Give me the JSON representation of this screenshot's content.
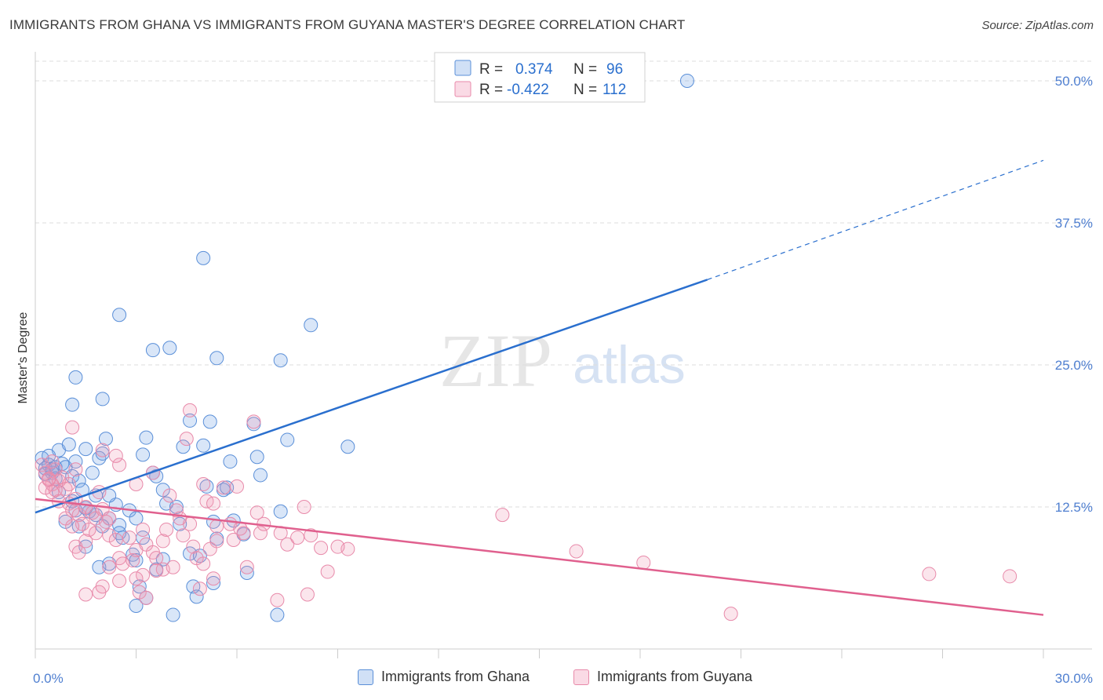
{
  "title": "IMMIGRANTS FROM GHANA VS IMMIGRANTS FROM GUYANA MASTER'S DEGREE CORRELATION CHART",
  "source": "Source: ZipAtlas.com",
  "watermark": {
    "zip": "ZIP",
    "atlas": "atlas"
  },
  "colors": {
    "ghana_fill": "rgba(120,165,230,0.28)",
    "ghana_stroke": "#5a8fd8",
    "ghana_line": "#2a6fce",
    "guyana_fill": "rgba(240,150,180,0.25)",
    "guyana_stroke": "#e88aaa",
    "guyana_line": "#e0608e",
    "tick": "#4f7fd0",
    "grid": "#dddddd"
  },
  "legend": {
    "r1_label": "R = ",
    "r1_value": "0.374",
    "n1_label": "N = ",
    "n1_value": "96",
    "r2_label": "R = ",
    "r2_value": "-0.422",
    "n2_label": "N = ",
    "n2_value": "112"
  },
  "bottom_legend": {
    "ghana": "Immigrants from Ghana",
    "guyana": "Immigrants from Guyana"
  },
  "chart_data": {
    "type": "scatter",
    "title": "IMMIGRANTS FROM GHANA VS IMMIGRANTS FROM GUYANA MASTER'S DEGREE CORRELATION CHART",
    "xlabel": "",
    "ylabel": "Master's Degree",
    "xlim": [
      0,
      30
    ],
    "ylim": [
      0,
      52
    ],
    "x_tick_labels": [
      "0.0%",
      "30.0%"
    ],
    "y_ticks": [
      12.5,
      25.0,
      37.5,
      50.0
    ],
    "y_tick_labels": [
      "12.5%",
      "25.0%",
      "37.5%",
      "50.0%"
    ],
    "grid": true,
    "legend_position": "top-center",
    "series": [
      {
        "name": "Immigrants from Ghana",
        "R": 0.374,
        "N": 96,
        "trend": {
          "x0": 0,
          "y0": 12.0,
          "x1": 20.0,
          "y1": 32.5,
          "dashed_to": [
            30.0,
            43.0
          ]
        },
        "points": [
          [
            0.2,
            16.8
          ],
          [
            0.3,
            15.9
          ],
          [
            0.4,
            16.2
          ],
          [
            0.5,
            15.5
          ],
          [
            0.6,
            16.0
          ],
          [
            0.7,
            17.5
          ],
          [
            0.3,
            15.4
          ],
          [
            0.8,
            16.3
          ],
          [
            0.5,
            15.8
          ],
          [
            0.4,
            17.0
          ],
          [
            0.9,
            16.0
          ],
          [
            1.0,
            18.0
          ],
          [
            1.2,
            16.5
          ],
          [
            1.1,
            15.2
          ],
          [
            1.3,
            14.8
          ],
          [
            0.6,
            15.0
          ],
          [
            0.7,
            13.8
          ],
          [
            1.5,
            17.6
          ],
          [
            1.4,
            14.0
          ],
          [
            1.6,
            12.1
          ],
          [
            1.7,
            15.5
          ],
          [
            1.8,
            13.5
          ],
          [
            1.9,
            16.8
          ],
          [
            2.0,
            17.2
          ],
          [
            2.1,
            18.5
          ],
          [
            1.1,
            13.0
          ],
          [
            1.2,
            12.2
          ],
          [
            0.9,
            11.2
          ],
          [
            1.3,
            10.8
          ],
          [
            1.5,
            12.4
          ],
          [
            1.8,
            11.8
          ],
          [
            2.2,
            11.5
          ],
          [
            2.4,
            12.7
          ],
          [
            2.5,
            10.9
          ],
          [
            2.6,
            9.8
          ],
          [
            2.2,
            13.5
          ],
          [
            2.8,
            12.2
          ],
          [
            3.0,
            11.5
          ],
          [
            3.2,
            17.1
          ],
          [
            3.3,
            18.6
          ],
          [
            3.5,
            15.5
          ],
          [
            3.6,
            15.2
          ],
          [
            3.8,
            14.0
          ],
          [
            3.2,
            9.8
          ],
          [
            2.0,
            10.8
          ],
          [
            2.5,
            10.2
          ],
          [
            1.9,
            7.2
          ],
          [
            1.5,
            9.0
          ],
          [
            2.9,
            8.3
          ],
          [
            3.0,
            7.8
          ],
          [
            2.2,
            7.5
          ],
          [
            3.1,
            5.5
          ],
          [
            3.3,
            4.5
          ],
          [
            3.6,
            7.0
          ],
          [
            3.8,
            7.9
          ],
          [
            3.9,
            12.8
          ],
          [
            4.1,
            3.0
          ],
          [
            4.2,
            12.5
          ],
          [
            4.4,
            17.8
          ],
          [
            4.6,
            8.4
          ],
          [
            4.7,
            5.5
          ],
          [
            4.8,
            4.6
          ],
          [
            4.9,
            8.2
          ],
          [
            5.1,
            14.3
          ],
          [
            5.3,
            11.2
          ],
          [
            5.4,
            9.7
          ],
          [
            5.6,
            14.0
          ],
          [
            5.8,
            16.5
          ],
          [
            5.9,
            11.3
          ],
          [
            6.2,
            10.1
          ],
          [
            6.3,
            6.7
          ],
          [
            6.5,
            19.8
          ],
          [
            6.6,
            16.9
          ],
          [
            6.7,
            15.3
          ],
          [
            5.3,
            5.8
          ],
          [
            5.0,
            17.9
          ],
          [
            4.6,
            20.1
          ],
          [
            5.2,
            20.0
          ],
          [
            5.4,
            25.6
          ],
          [
            5.0,
            34.4
          ],
          [
            2.5,
            29.4
          ],
          [
            3.5,
            26.3
          ],
          [
            4.0,
            26.5
          ],
          [
            1.2,
            23.9
          ],
          [
            1.1,
            21.5
          ],
          [
            2.0,
            22.0
          ],
          [
            4.3,
            11.0
          ],
          [
            3.0,
            3.8
          ],
          [
            7.3,
            25.4
          ],
          [
            7.5,
            18.4
          ],
          [
            8.2,
            28.5
          ],
          [
            9.3,
            17.8
          ],
          [
            7.2,
            3.0
          ],
          [
            7.3,
            12.1
          ],
          [
            19.4,
            50.0
          ],
          [
            5.7,
            14.2
          ]
        ]
      },
      {
        "name": "Immigrants from Guyana",
        "R": -0.422,
        "N": 112,
        "trend": {
          "x0": 0,
          "y0": 13.2,
          "x1": 30.0,
          "y1": 3.0
        },
        "points": [
          [
            0.2,
            16.2
          ],
          [
            0.3,
            15.5
          ],
          [
            0.4,
            15.0
          ],
          [
            0.5,
            14.5
          ],
          [
            0.6,
            15.8
          ],
          [
            0.7,
            14.8
          ],
          [
            0.3,
            14.2
          ],
          [
            0.8,
            15.1
          ],
          [
            0.5,
            16.5
          ],
          [
            0.4,
            14.9
          ],
          [
            0.9,
            14.1
          ],
          [
            1.0,
            12.8
          ],
          [
            1.2,
            13.2
          ],
          [
            1.1,
            12.2
          ],
          [
            1.3,
            11.8
          ],
          [
            0.6,
            14.0
          ],
          [
            0.7,
            13.0
          ],
          [
            1.5,
            12.5
          ],
          [
            1.4,
            11.0
          ],
          [
            1.6,
            10.5
          ],
          [
            1.7,
            12.0
          ],
          [
            1.8,
            11.5
          ],
          [
            1.9,
            13.8
          ],
          [
            2.0,
            12.3
          ],
          [
            2.1,
            11.2
          ],
          [
            1.1,
            10.8
          ],
          [
            1.2,
            9.0
          ],
          [
            0.9,
            11.5
          ],
          [
            1.3,
            8.5
          ],
          [
            1.5,
            9.5
          ],
          [
            1.8,
            10.2
          ],
          [
            2.2,
            10.0
          ],
          [
            2.4,
            9.6
          ],
          [
            2.5,
            8.0
          ],
          [
            2.6,
            7.5
          ],
          [
            2.2,
            11.5
          ],
          [
            2.8,
            9.8
          ],
          [
            3.0,
            8.7
          ],
          [
            3.2,
            10.5
          ],
          [
            3.3,
            9.2
          ],
          [
            3.5,
            8.5
          ],
          [
            3.6,
            8.0
          ],
          [
            3.8,
            7.0
          ],
          [
            3.2,
            6.5
          ],
          [
            2.0,
            5.5
          ],
          [
            2.5,
            6.0
          ],
          [
            1.9,
            5.0
          ],
          [
            1.5,
            4.8
          ],
          [
            2.9,
            7.8
          ],
          [
            3.0,
            6.2
          ],
          [
            2.2,
            7.2
          ],
          [
            3.1,
            5.0
          ],
          [
            3.3,
            4.5
          ],
          [
            3.6,
            6.9
          ],
          [
            3.8,
            9.5
          ],
          [
            3.9,
            10.5
          ],
          [
            4.1,
            7.2
          ],
          [
            4.2,
            12.2
          ],
          [
            4.4,
            10.0
          ],
          [
            4.6,
            11.0
          ],
          [
            4.7,
            9.0
          ],
          [
            4.8,
            8.0
          ],
          [
            4.9,
            5.3
          ],
          [
            5.1,
            13.0
          ],
          [
            5.3,
            12.8
          ],
          [
            5.4,
            10.8
          ],
          [
            5.6,
            14.2
          ],
          [
            5.8,
            11.0
          ],
          [
            5.9,
            9.6
          ],
          [
            6.2,
            10.2
          ],
          [
            6.3,
            7.2
          ],
          [
            6.5,
            20.0
          ],
          [
            6.6,
            12.0
          ],
          [
            6.7,
            10.2
          ],
          [
            5.3,
            6.2
          ],
          [
            5.0,
            14.5
          ],
          [
            4.6,
            21.0
          ],
          [
            5.2,
            8.8
          ],
          [
            5.4,
            9.5
          ],
          [
            5.0,
            7.5
          ],
          [
            2.5,
            16.2
          ],
          [
            3.5,
            15.5
          ],
          [
            4.0,
            13.5
          ],
          [
            1.2,
            15.8
          ],
          [
            1.1,
            19.5
          ],
          [
            2.0,
            17.5
          ],
          [
            4.3,
            11.5
          ],
          [
            3.0,
            14.5
          ],
          [
            7.3,
            10.2
          ],
          [
            7.5,
            9.2
          ],
          [
            8.2,
            10.0
          ],
          [
            9.3,
            8.8
          ],
          [
            7.2,
            4.3
          ],
          [
            6.0,
            14.3
          ],
          [
            8.0,
            12.5
          ],
          [
            8.5,
            8.9
          ],
          [
            6.8,
            11.0
          ],
          [
            7.8,
            9.8
          ],
          [
            9.0,
            9.0
          ],
          [
            8.7,
            6.8
          ],
          [
            6.1,
            10.6
          ],
          [
            8.1,
            4.8
          ],
          [
            13.9,
            11.8
          ],
          [
            16.1,
            8.6
          ],
          [
            18.1,
            7.6
          ],
          [
            20.7,
            3.1
          ],
          [
            26.6,
            6.6
          ],
          [
            29.0,
            6.4
          ],
          [
            1.0,
            14.5
          ],
          [
            0.5,
            13.8
          ],
          [
            2.4,
            17.0
          ],
          [
            4.5,
            18.5
          ]
        ]
      }
    ]
  }
}
